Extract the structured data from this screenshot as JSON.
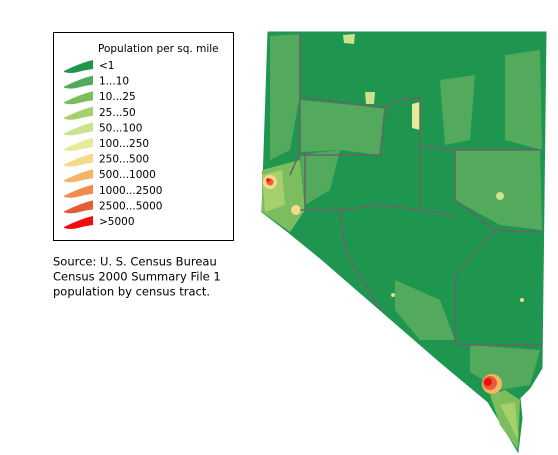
{
  "legend": {
    "title": "Population per sq. mile",
    "items": [
      {
        "label": "<1",
        "color": "#1f9650"
      },
      {
        "label": "1...10",
        "color": "#53aa5c"
      },
      {
        "label": "10...25",
        "color": "#7cbd5e"
      },
      {
        "label": "25...50",
        "color": "#a5d06c"
      },
      {
        "label": "50...100",
        "color": "#cae38c"
      },
      {
        "label": "100...250",
        "color": "#e7ea96"
      },
      {
        "label": "250...500",
        "color": "#f6d98a"
      },
      {
        "label": "500...1000",
        "color": "#f5b468"
      },
      {
        "label": "1000...2500",
        "color": "#ef8c4e"
      },
      {
        "label": "2500...5000",
        "color": "#e55d36"
      },
      {
        "label": ">5000",
        "color": "#f20d0d"
      }
    ]
  },
  "source": [
    "Source: U. S. Census Bureau",
    "Census 2000 Summary File 1",
    "population by census tract."
  ]
}
